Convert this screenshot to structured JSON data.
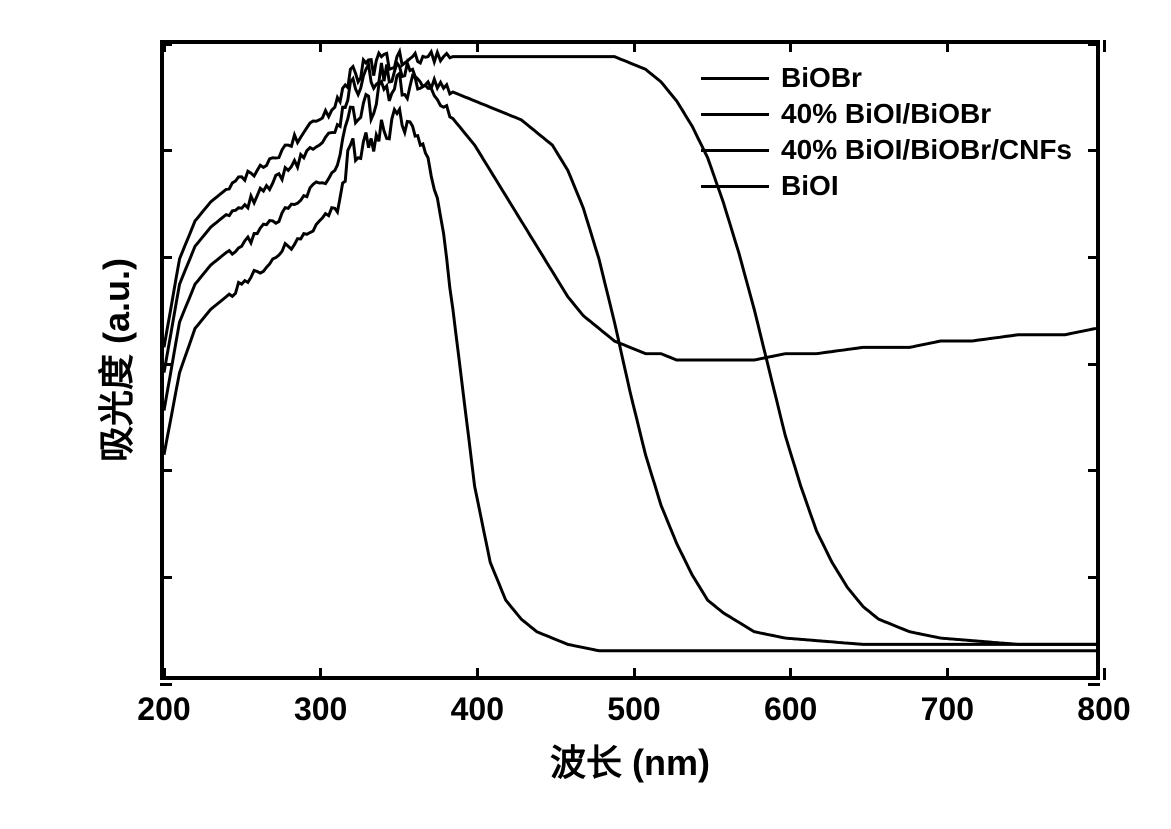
{
  "chart": {
    "type": "line",
    "xlabel": "波长 (nm)",
    "ylabel": "吸光度 (a.u.)",
    "xlim": [
      200,
      800
    ],
    "ylim": [
      0,
      1.0
    ],
    "x_ticks": [
      200,
      300,
      400,
      500,
      600,
      700,
      800
    ],
    "y_tick_count": 6,
    "line_color": "#000000",
    "line_width": 3,
    "border_color": "#000000",
    "border_width": 4,
    "background_color": "#ffffff",
    "label_fontsize": 36,
    "tick_fontsize": 32,
    "legend_fontsize": 28,
    "legend_position": "upper-right",
    "legend_items": [
      "BiOBr",
      "40% BiOI/BiOBr",
      "40% BiOI/BiOBr/CNFs",
      "BiOI"
    ],
    "series": [
      {
        "name": "BiOBr",
        "color": "#000000",
        "x": [
          200,
          210,
          220,
          230,
          240,
          250,
          260,
          270,
          280,
          290,
          300,
          310,
          315,
          320,
          325,
          330,
          335,
          340,
          345,
          350,
          355,
          360,
          365,
          370,
          380,
          390,
          400,
          410,
          420,
          430,
          440,
          450,
          460,
          480,
          500,
          550,
          600,
          650,
          700,
          750,
          800
        ],
        "y": [
          0.35,
          0.48,
          0.55,
          0.58,
          0.6,
          0.62,
          0.64,
          0.66,
          0.68,
          0.7,
          0.72,
          0.74,
          0.78,
          0.84,
          0.82,
          0.86,
          0.83,
          0.88,
          0.85,
          0.89,
          0.86,
          0.87,
          0.84,
          0.82,
          0.7,
          0.5,
          0.3,
          0.18,
          0.12,
          0.09,
          0.07,
          0.06,
          0.05,
          0.04,
          0.04,
          0.04,
          0.04,
          0.04,
          0.04,
          0.04,
          0.04
        ]
      },
      {
        "name": "40% BiOI/BiOBr",
        "color": "#000000",
        "x": [
          200,
          210,
          220,
          230,
          240,
          250,
          260,
          270,
          280,
          290,
          300,
          310,
          315,
          320,
          325,
          330,
          335,
          340,
          345,
          350,
          355,
          360,
          365,
          370,
          380,
          390,
          400,
          410,
          420,
          430,
          440,
          450,
          460,
          470,
          480,
          490,
          500,
          510,
          520,
          530,
          540,
          550,
          560,
          580,
          600,
          650,
          700,
          750,
          800
        ],
        "y": [
          0.42,
          0.56,
          0.62,
          0.65,
          0.67,
          0.68,
          0.7,
          0.72,
          0.74,
          0.76,
          0.78,
          0.8,
          0.85,
          0.9,
          0.88,
          0.92,
          0.89,
          0.94,
          0.91,
          0.95,
          0.92,
          0.95,
          0.93,
          0.94,
          0.93,
          0.92,
          0.91,
          0.9,
          0.89,
          0.88,
          0.86,
          0.84,
          0.8,
          0.74,
          0.66,
          0.56,
          0.45,
          0.35,
          0.27,
          0.21,
          0.16,
          0.12,
          0.1,
          0.07,
          0.06,
          0.05,
          0.05,
          0.05,
          0.05
        ]
      },
      {
        "name": "40% BiOI/BiOBr/CNFs",
        "color": "#000000",
        "x": [
          200,
          210,
          220,
          230,
          240,
          250,
          260,
          270,
          280,
          290,
          300,
          310,
          315,
          320,
          325,
          330,
          335,
          340,
          345,
          350,
          355,
          360,
          365,
          370,
          380,
          390,
          400,
          410,
          420,
          430,
          440,
          450,
          460,
          470,
          480,
          490,
          500,
          510,
          520,
          530,
          540,
          550,
          560,
          570,
          580,
          600,
          620,
          650,
          680,
          700,
          720,
          750,
          780,
          800
        ],
        "y": [
          0.48,
          0.62,
          0.68,
          0.71,
          0.73,
          0.74,
          0.76,
          0.78,
          0.8,
          0.82,
          0.84,
          0.86,
          0.9,
          0.94,
          0.92,
          0.96,
          0.93,
          0.97,
          0.94,
          0.97,
          0.95,
          0.96,
          0.94,
          0.93,
          0.9,
          0.87,
          0.84,
          0.8,
          0.76,
          0.72,
          0.68,
          0.64,
          0.6,
          0.57,
          0.55,
          0.53,
          0.52,
          0.51,
          0.51,
          0.5,
          0.5,
          0.5,
          0.5,
          0.5,
          0.5,
          0.51,
          0.51,
          0.52,
          0.52,
          0.53,
          0.53,
          0.54,
          0.54,
          0.55
        ]
      },
      {
        "name": "BiOI",
        "color": "#000000",
        "x": [
          200,
          210,
          220,
          230,
          240,
          250,
          260,
          270,
          280,
          290,
          300,
          310,
          315,
          320,
          325,
          330,
          335,
          340,
          345,
          350,
          355,
          360,
          365,
          370,
          380,
          390,
          400,
          410,
          420,
          430,
          440,
          450,
          460,
          470,
          480,
          490,
          500,
          510,
          520,
          530,
          540,
          550,
          560,
          570,
          580,
          590,
          600,
          610,
          620,
          630,
          640,
          650,
          660,
          670,
          680,
          700,
          750,
          800
        ],
        "y": [
          0.52,
          0.66,
          0.72,
          0.75,
          0.77,
          0.79,
          0.8,
          0.82,
          0.84,
          0.86,
          0.88,
          0.9,
          0.93,
          0.96,
          0.94,
          0.97,
          0.95,
          0.98,
          0.96,
          0.98,
          0.97,
          0.98,
          0.97,
          0.98,
          0.98,
          0.98,
          0.98,
          0.98,
          0.98,
          0.98,
          0.98,
          0.98,
          0.98,
          0.98,
          0.98,
          0.98,
          0.97,
          0.96,
          0.94,
          0.91,
          0.87,
          0.82,
          0.75,
          0.67,
          0.58,
          0.48,
          0.38,
          0.3,
          0.23,
          0.18,
          0.14,
          0.11,
          0.09,
          0.08,
          0.07,
          0.06,
          0.05,
          0.05
        ]
      }
    ]
  }
}
